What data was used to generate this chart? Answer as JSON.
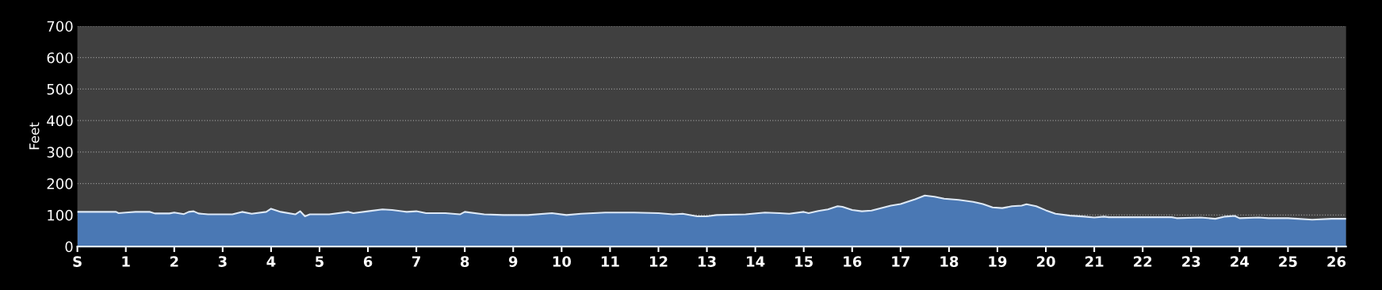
{
  "chart_data": {
    "type": "area",
    "ylabel": "Feet",
    "x": [
      0,
      0.8,
      0.85,
      1,
      1.2,
      1.5,
      1.6,
      1.9,
      2,
      2.2,
      2.3,
      2.4,
      2.5,
      2.7,
      3.2,
      3.4,
      3.6,
      3.9,
      4,
      4.2,
      4.5,
      4.6,
      4.7,
      4.8,
      5.2,
      5.6,
      5.7,
      6,
      6.3,
      6.5,
      6.8,
      7,
      7.2,
      7.6,
      7.9,
      8,
      8.4,
      8.8,
      9.3,
      9.8,
      10.1,
      10.4,
      10.9,
      11.5,
      12,
      12.3,
      12.5,
      12.8,
      13,
      13.2,
      13.8,
      14.2,
      14.5,
      14.7,
      15,
      15.1,
      15.3,
      15.5,
      15.7,
      15.8,
      16,
      16.2,
      16.4,
      16.8,
      17,
      17.3,
      17.5,
      17.7,
      17.9,
      18.2,
      18.5,
      18.7,
      18.9,
      19.1,
      19.3,
      19.5,
      19.6,
      19.8,
      20,
      20.2,
      20.5,
      20.8,
      21,
      21.2,
      21.3,
      22.6,
      22.7,
      23.2,
      23.5,
      23.7,
      23.9,
      24,
      24.4,
      24.6,
      25,
      25.2,
      25.5,
      25.9,
      26.2
    ],
    "series": [
      {
        "color": "#4a78b4",
        "values": [
          110,
          110,
          106,
          108,
          110,
          110,
          105,
          105,
          108,
          103,
          110,
          112,
          105,
          102,
          102,
          110,
          104,
          110,
          120,
          110,
          102,
          112,
          96,
          102,
          102,
          110,
          106,
          112,
          118,
          116,
          110,
          112,
          106,
          106,
          102,
          110,
          102,
          100,
          100,
          106,
          100,
          104,
          108,
          108,
          106,
          102,
          104,
          96,
          96,
          100,
          102,
          108,
          106,
          104,
          110,
          106,
          113,
          118,
          128,
          126,
          116,
          112,
          114,
          130,
          135,
          150,
          162,
          158,
          152,
          148,
          142,
          135,
          124,
          122,
          128,
          130,
          134,
          128,
          115,
          104,
          98,
          95,
          92,
          95,
          93,
          93,
          90,
          92,
          88,
          95,
          97,
          90,
          92,
          90,
          90,
          88,
          85,
          88,
          88
        ]
      }
    ],
    "xlim": [
      0,
      26.2
    ],
    "xticks": [
      {
        "value": 0,
        "label": "S"
      },
      1,
      2,
      3,
      4,
      5,
      6,
      7,
      8,
      9,
      10,
      11,
      12,
      13,
      14,
      15,
      16,
      17,
      18,
      19,
      20,
      21,
      22,
      23,
      24,
      25,
      26
    ],
    "ylim": [
      0,
      700
    ],
    "yticks": [
      0,
      100,
      200,
      300,
      400,
      500,
      600,
      700
    ],
    "grid": "y",
    "legend": false
  }
}
